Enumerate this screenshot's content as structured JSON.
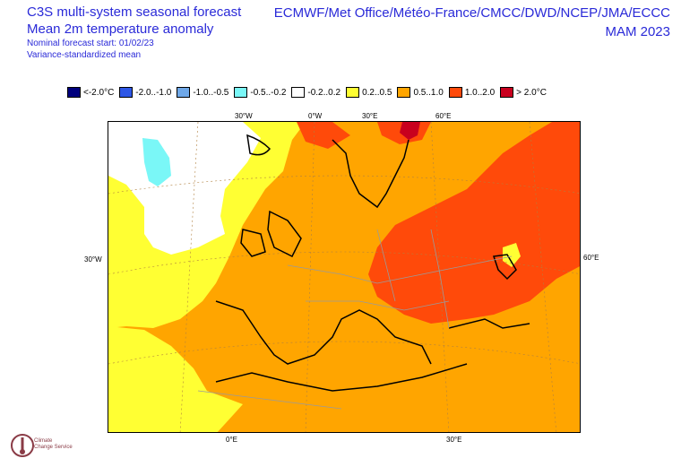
{
  "header": {
    "product": "C3S multi-system seasonal forecast",
    "variable": "Mean 2m temperature anomaly",
    "start": "Nominal forecast start: 01/02/23",
    "method": "Variance-standardized mean",
    "systems": "ECMWF/Met Office/Météo-France/CMCC/DWD/NCEP/JMA/ECCC",
    "season": "MAM 2023"
  },
  "legend": [
    {
      "label": "<-2.0°C",
      "color": "#00007d"
    },
    {
      "label": "-2.0..-1.0",
      "color": "#2e57e6"
    },
    {
      "label": "-1.0..-0.5",
      "color": "#6fa8e8"
    },
    {
      "label": "-0.5..-0.2",
      "color": "#7af7f7"
    },
    {
      "label": "-0.2..0.2",
      "color": "#ffffff"
    },
    {
      "label": "0.2..0.5",
      "color": "#ffff33"
    },
    {
      "label": "0.5..1.0",
      "color": "#ffa500"
    },
    {
      "label": "1.0..2.0",
      "color": "#ff4a0a"
    },
    {
      "label": "> 2.0°C",
      "color": "#c8001e"
    }
  ],
  "axes": {
    "top": [
      "30°W",
      "0°W",
      "30°E",
      "60°E"
    ],
    "left": "30°W",
    "right": "60°E",
    "bottom": [
      "0°E",
      "30°E"
    ]
  },
  "logo": {
    "name": "climate-change-service-logo",
    "text_line1": "Climate",
    "text_line2": "Change Service"
  }
}
